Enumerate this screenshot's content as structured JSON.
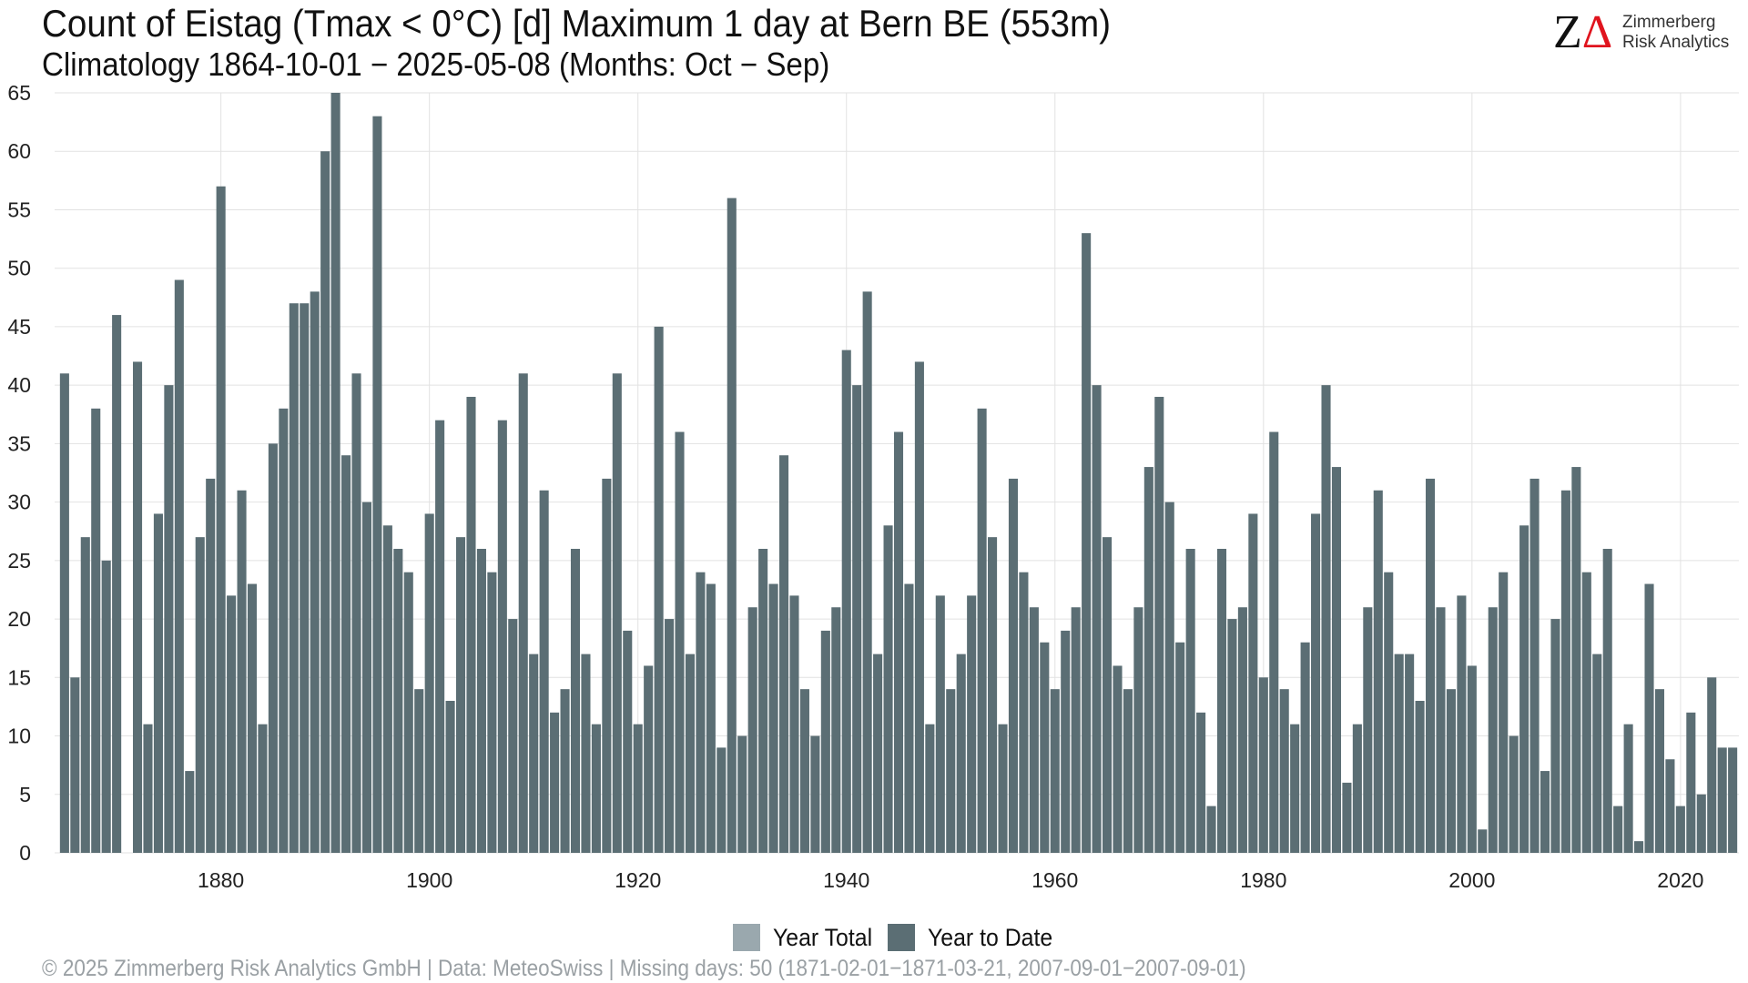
{
  "header": {
    "title": "Count of Eistag (Tmax < 0°C) [d] Maximum 1 day at Bern  BE (553m)",
    "subtitle": "Climatology 1864-10-01 − 2025-05-08 (Months: Oct − Sep)"
  },
  "logo": {
    "mark_z": "Z",
    "mark_delta": "Δ",
    "line1": "Zimmerberg",
    "line2": "Risk Analytics"
  },
  "legend": {
    "items": [
      {
        "label": "Year Total",
        "color": "#9aa8ae"
      },
      {
        "label": "Year to Date",
        "color": "#5b6e74"
      }
    ]
  },
  "footer": {
    "text": "©  2025 Zimmerberg Risk Analytics GmbH | Data: MeteoSwiss | Missing days: 50 (1871-02-01−1871-03-21, 2007-09-01−2007-09-01)"
  },
  "colors": {
    "bar": "#5b6e74",
    "grid": "#e2e2e2"
  },
  "chart_data": {
    "type": "bar",
    "x_start": 1865,
    "x": [
      1865,
      1866,
      1867,
      1868,
      1869,
      1870,
      1871,
      1872,
      1873,
      1874,
      1875,
      1876,
      1877,
      1878,
      1879,
      1880,
      1881,
      1882,
      1883,
      1884,
      1885,
      1886,
      1887,
      1888,
      1889,
      1890,
      1891,
      1892,
      1893,
      1894,
      1895,
      1896,
      1897,
      1898,
      1899,
      1900,
      1901,
      1902,
      1903,
      1904,
      1905,
      1906,
      1907,
      1908,
      1909,
      1910,
      1911,
      1912,
      1913,
      1914,
      1915,
      1916,
      1917,
      1918,
      1919,
      1920,
      1921,
      1922,
      1923,
      1924,
      1925,
      1926,
      1927,
      1928,
      1929,
      1930,
      1931,
      1932,
      1933,
      1934,
      1935,
      1936,
      1937,
      1938,
      1939,
      1940,
      1941,
      1942,
      1943,
      1944,
      1945,
      1946,
      1947,
      1948,
      1949,
      1950,
      1951,
      1952,
      1953,
      1954,
      1955,
      1956,
      1957,
      1958,
      1959,
      1960,
      1961,
      1962,
      1963,
      1964,
      1965,
      1966,
      1967,
      1968,
      1969,
      1970,
      1971,
      1972,
      1973,
      1974,
      1975,
      1976,
      1977,
      1978,
      1979,
      1980,
      1981,
      1982,
      1983,
      1984,
      1985,
      1986,
      1987,
      1988,
      1989,
      1990,
      1991,
      1992,
      1993,
      1994,
      1995,
      1996,
      1997,
      1998,
      1999,
      2000,
      2001,
      2002,
      2003,
      2004,
      2005,
      2006,
      2007,
      2008,
      2009,
      2010,
      2011,
      2012,
      2013,
      2014,
      2015,
      2016,
      2017,
      2018,
      2019,
      2020,
      2021,
      2022,
      2023,
      2024,
      2025
    ],
    "series": [
      {
        "name": "Year to Date",
        "values": [
          41,
          15,
          27,
          38,
          25,
          46,
          null,
          42,
          11,
          29,
          40,
          49,
          7,
          27,
          32,
          57,
          22,
          31,
          23,
          11,
          35,
          38,
          47,
          47,
          48,
          60,
          65,
          34,
          41,
          30,
          63,
          28,
          26,
          24,
          14,
          29,
          37,
          13,
          27,
          39,
          26,
          24,
          37,
          20,
          41,
          17,
          31,
          12,
          14,
          26,
          17,
          11,
          32,
          41,
          19,
          11,
          16,
          45,
          20,
          36,
          17,
          24,
          23,
          9,
          56,
          10,
          21,
          26,
          23,
          34,
          22,
          14,
          10,
          19,
          21,
          43,
          40,
          48,
          17,
          28,
          36,
          23,
          42,
          11,
          22,
          14,
          17,
          22,
          38,
          27,
          11,
          32,
          24,
          21,
          18,
          14,
          19,
          21,
          53,
          40,
          27,
          16,
          14,
          21,
          33,
          39,
          30,
          18,
          26,
          12,
          4,
          26,
          20,
          21,
          29,
          15,
          36,
          14,
          11,
          18,
          29,
          40,
          33,
          6,
          11,
          21,
          31,
          24,
          17,
          17,
          13,
          32,
          21,
          14,
          22,
          16,
          2,
          21,
          24,
          10,
          28,
          32,
          7,
          20,
          31,
          33,
          24,
          17,
          26,
          4,
          11,
          1,
          23,
          14,
          8,
          4,
          12,
          5,
          15,
          9,
          9
        ]
      }
    ],
    "x_ticks": [
      "1880",
      "1900",
      "1920",
      "1940",
      "1960",
      "1980",
      "2000",
      "2020"
    ],
    "y_ticks": [
      "0",
      "5",
      "10",
      "15",
      "20",
      "25",
      "30",
      "35",
      "40",
      "45",
      "50",
      "55",
      "60",
      "65"
    ],
    "ylim": [
      0,
      65
    ],
    "xlim": [
      1864.4,
      2025.6
    ],
    "grid": true,
    "legend_position": "bottom"
  }
}
